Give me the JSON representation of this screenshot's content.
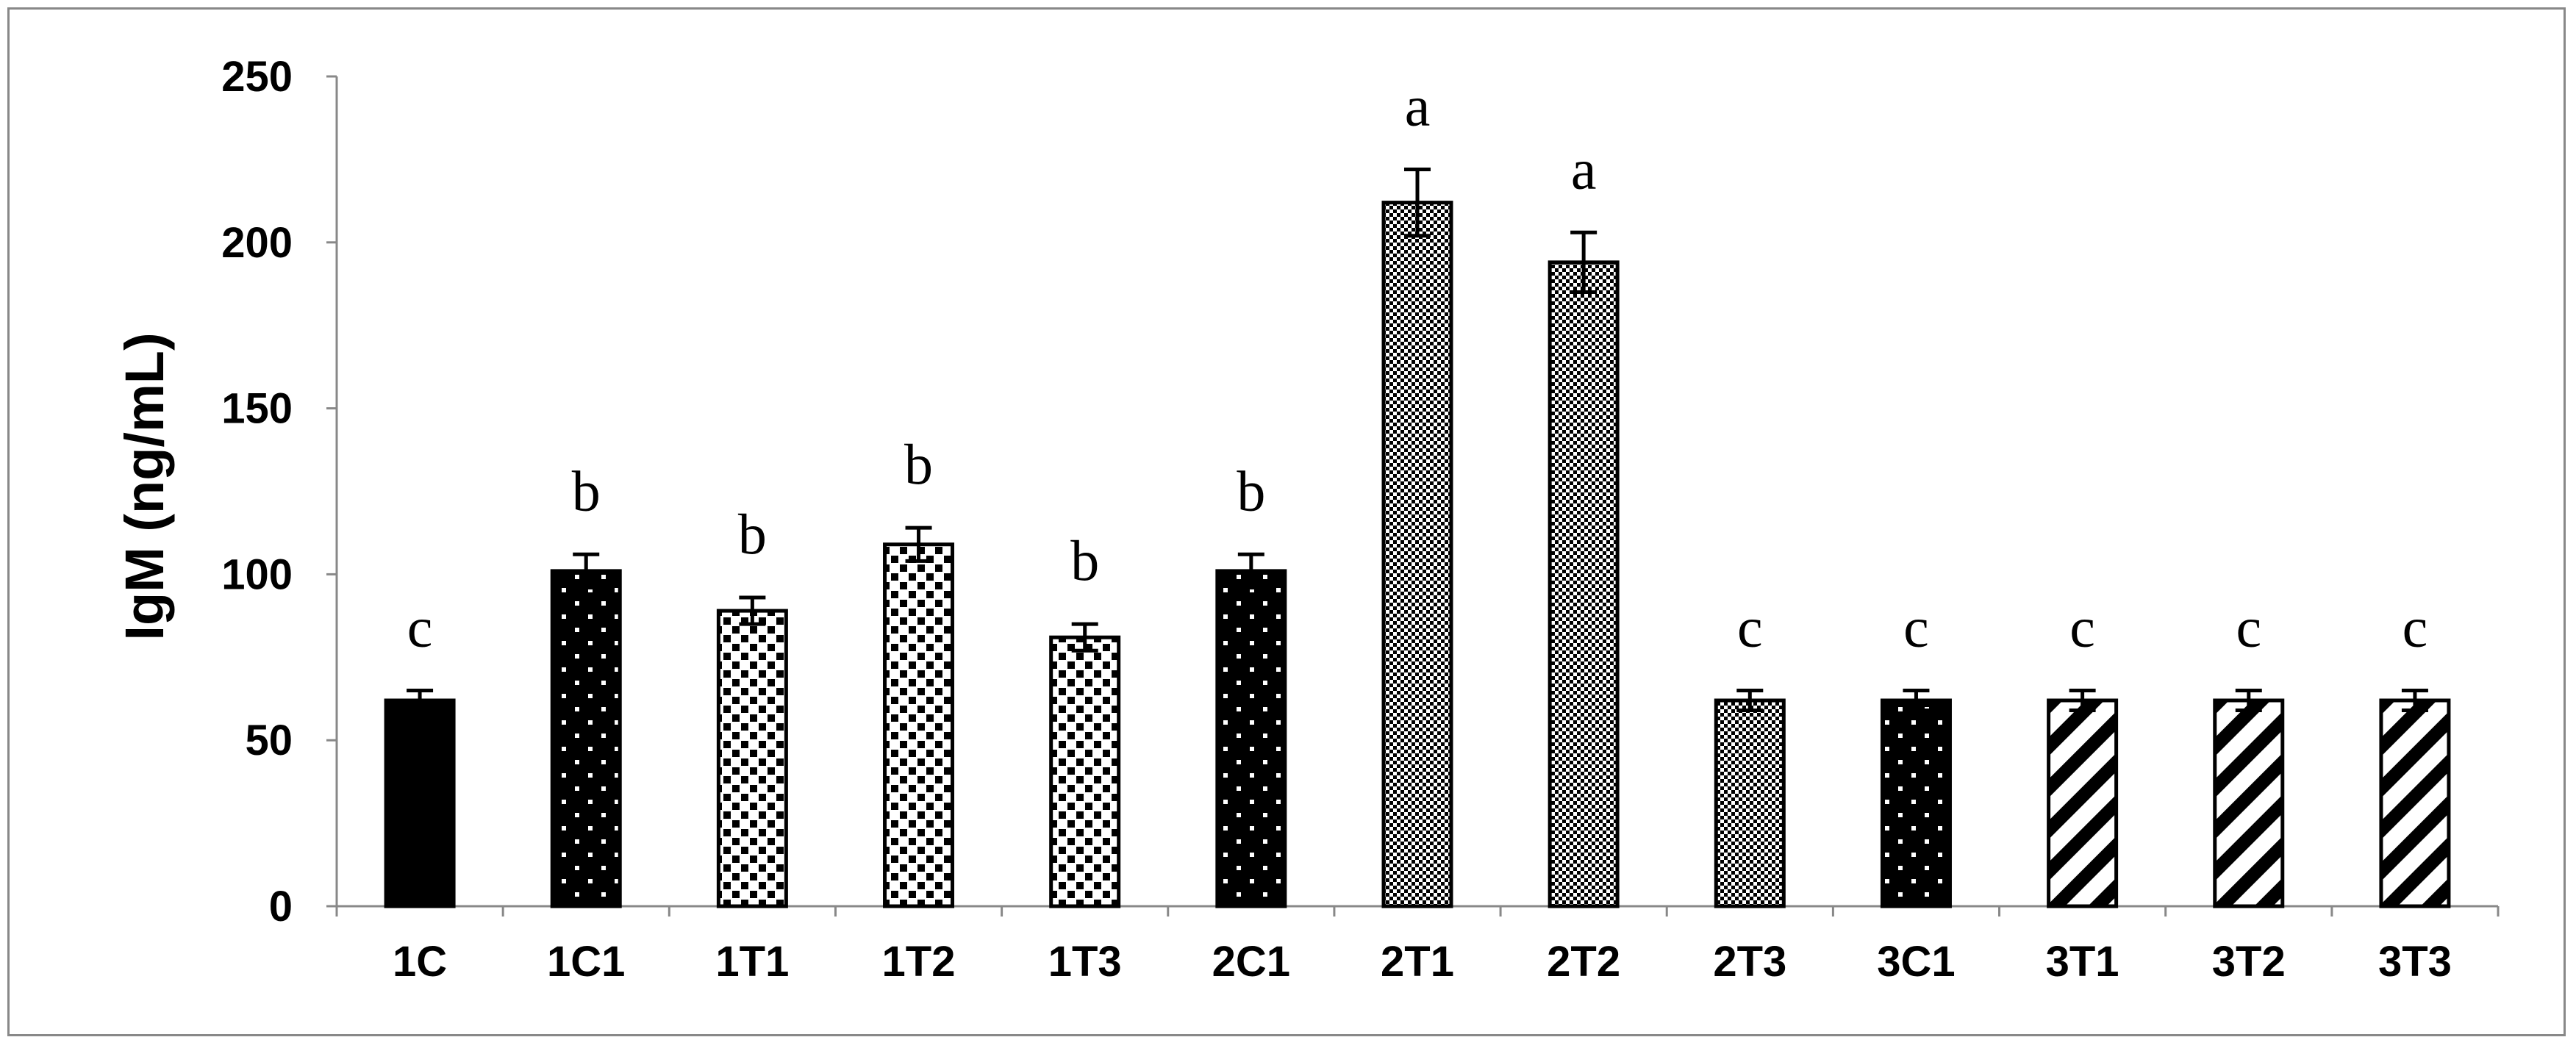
{
  "chart_data": {
    "type": "bar",
    "title": "",
    "xlabel": "",
    "ylabel": "IgM (ng/mL)",
    "ylim": [
      0,
      250
    ],
    "yticks": [
      0,
      50,
      100,
      150,
      200,
      250
    ],
    "grid": false,
    "categories": [
      "1C",
      "1C1",
      "1T1",
      "1T2",
      "1T3",
      "2C1",
      "2T1",
      "2T2",
      "2T3",
      "3C1",
      "3T1",
      "3T2",
      "3T3"
    ],
    "values": [
      62,
      101,
      89,
      109,
      81,
      101,
      212,
      194,
      62,
      62,
      62,
      62,
      62
    ],
    "errors": [
      3,
      5,
      4,
      5,
      4,
      5,
      10,
      9,
      3,
      3,
      3,
      3,
      3
    ],
    "letters": [
      "c",
      "b",
      "b",
      "b",
      "b",
      "b",
      "a",
      "a",
      "c",
      "c",
      "c",
      "c",
      "c"
    ],
    "fill_patterns": [
      "solid-black",
      "sparse-dots",
      "checker",
      "checker",
      "checker",
      "sparse-dots",
      "dense-grid",
      "dense-grid",
      "dense-grid",
      "sparse-dots",
      "diagonal-stripes",
      "diagonal-stripes",
      "diagonal-stripes"
    ]
  }
}
